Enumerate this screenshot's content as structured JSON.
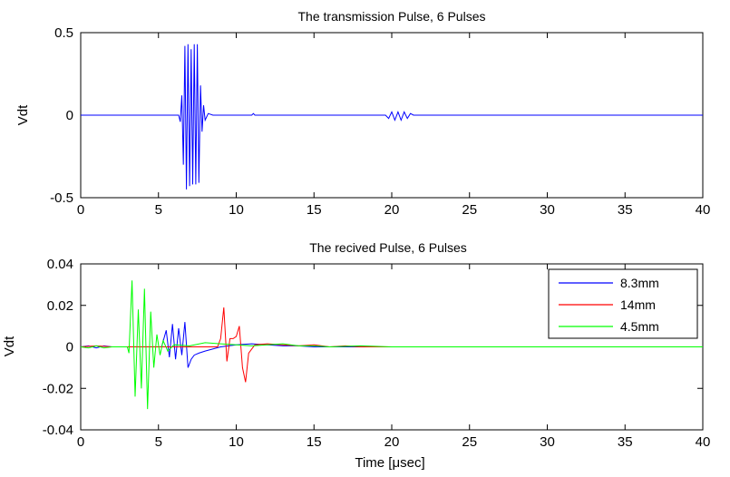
{
  "chart_data": [
    {
      "type": "line",
      "title": "The transmission Pulse, 6 Pulses",
      "xlabel": "",
      "ylabel": "Vdt",
      "xlim": [
        0,
        40
      ],
      "ylim": [
        -0.5,
        0.5
      ],
      "xticks": [
        0,
        5,
        10,
        15,
        20,
        25,
        30,
        35,
        40
      ],
      "xtick_labels": [
        "0",
        "5",
        "10",
        "15",
        "20",
        "25",
        "30",
        "35",
        "40"
      ],
      "yticks": [
        -0.5,
        0,
        0.5
      ],
      "ytick_labels": [
        "-0.5",
        "0",
        "0.5"
      ],
      "grid": false,
      "series": [
        {
          "color": "#0000ff",
          "x": [
            0,
            6.3,
            6.4,
            6.5,
            6.6,
            6.7,
            6.8,
            6.9,
            7.0,
            7.1,
            7.2,
            7.3,
            7.4,
            7.5,
            7.6,
            7.7,
            7.8,
            7.9,
            8.0,
            8.2,
            8.5,
            11.0,
            11.1,
            11.2,
            19.6,
            19.8,
            20.0,
            20.2,
            20.4,
            20.6,
            20.8,
            21.0,
            21.2,
            21.4,
            40
          ],
          "y": [
            0,
            0,
            -0.04,
            0.12,
            -0.3,
            0.42,
            -0.45,
            0.43,
            -0.43,
            0.4,
            -0.42,
            0.43,
            -0.42,
            0.43,
            -0.41,
            0.18,
            -0.1,
            0.06,
            -0.03,
            0.01,
            0,
            0,
            0.01,
            0,
            0,
            -0.02,
            0.02,
            -0.03,
            0.02,
            -0.03,
            0.02,
            -0.02,
            0.01,
            0,
            0
          ]
        }
      ]
    },
    {
      "type": "line",
      "title": "The recived Pulse, 6 Pulses",
      "xlabel": "Time [μsec]",
      "ylabel": "Vdt",
      "xlim": [
        0,
        40
      ],
      "ylim": [
        -0.04,
        0.04
      ],
      "xticks": [
        0,
        5,
        10,
        15,
        20,
        25,
        30,
        35,
        40
      ],
      "xtick_labels": [
        "0",
        "5",
        "10",
        "15",
        "20",
        "25",
        "30",
        "35",
        "40"
      ],
      "yticks": [
        -0.04,
        -0.02,
        0,
        0.02,
        0.04
      ],
      "ytick_labels": [
        "-0.04",
        "-0.02",
        "0",
        "0.02",
        "0.04"
      ],
      "grid": false,
      "legend": {
        "position": "top-right"
      },
      "series": [
        {
          "name": "8.3mm",
          "color": "#0000ff",
          "x": [
            0,
            0.5,
            1,
            1.5,
            2,
            2.5,
            3,
            3.5,
            4,
            4.5,
            5.2,
            5.5,
            5.7,
            5.9,
            6.1,
            6.3,
            6.5,
            6.7,
            6.9,
            7.1,
            7.3,
            7.6,
            8,
            9,
            10,
            11,
            12,
            13,
            14,
            15,
            16,
            20,
            25,
            30,
            35,
            40
          ],
          "y": [
            0,
            0.0005,
            -0.0005,
            0.0005,
            0,
            0,
            0,
            0,
            0,
            0,
            0,
            0.008,
            -0.005,
            0.011,
            -0.006,
            0.009,
            -0.004,
            0.012,
            -0.01,
            -0.006,
            -0.004,
            -0.003,
            -0.002,
            0,
            0.001,
            0.0015,
            0.001,
            0.0005,
            0.0005,
            0,
            0,
            0,
            0,
            0,
            0,
            0
          ]
        },
        {
          "name": "14mm",
          "color": "#ff0000",
          "x": [
            0,
            1,
            2,
            3,
            4,
            5,
            6,
            7,
            8,
            8.8,
            9.0,
            9.2,
            9.4,
            9.6,
            9.8,
            10.0,
            10.2,
            10.4,
            10.6,
            10.8,
            11.2,
            12,
            13,
            14,
            15,
            16,
            17,
            18,
            20,
            25,
            30,
            35,
            40
          ],
          "y": [
            0,
            0.0005,
            0,
            0,
            0,
            0,
            0,
            0,
            0,
            0,
            0.004,
            0.019,
            -0.007,
            0.004,
            0.004,
            0.005,
            0.01,
            -0.01,
            -0.017,
            -0.003,
            0.001,
            0.0015,
            0.001,
            0.0005,
            0.001,
            0,
            0.0005,
            0,
            0,
            0,
            0,
            0,
            0
          ]
        },
        {
          "name": "4.5mm",
          "color": "#00ff00",
          "x": [
            0,
            0.5,
            1,
            1.5,
            2,
            2.5,
            3.0,
            3.1,
            3.3,
            3.5,
            3.7,
            3.9,
            4.1,
            4.3,
            4.5,
            4.7,
            4.9,
            5.1,
            5.3,
            5.6,
            6,
            7,
            8,
            9,
            10,
            11,
            12,
            13,
            14,
            15,
            16,
            18,
            20,
            25,
            30,
            35,
            40
          ],
          "y": [
            0,
            -0.0005,
            0.0005,
            -0.0005,
            0,
            0,
            0,
            -0.003,
            0.032,
            -0.024,
            0.018,
            -0.02,
            0.028,
            -0.03,
            0.017,
            -0.01,
            0.006,
            -0.004,
            0.003,
            -0.002,
            0.001,
            0.0005,
            0.002,
            0.0015,
            0.001,
            0.0005,
            0.001,
            0.0015,
            0.0005,
            0.0005,
            0,
            0.0005,
            0,
            0,
            0,
            0,
            0
          ]
        }
      ]
    }
  ]
}
